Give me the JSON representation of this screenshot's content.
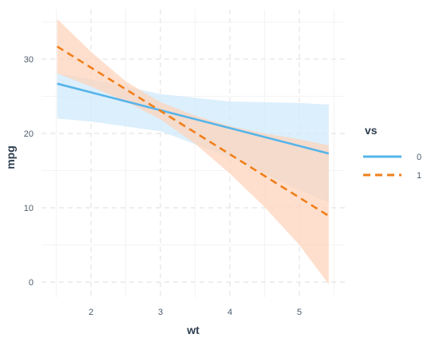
{
  "chart_data": {
    "type": "line",
    "xlabel": "wt",
    "ylabel": "mpg",
    "xlim": [
      1.513,
      5.424
    ],
    "ylim": [
      -1.5,
      36
    ],
    "xticks": [
      2,
      3,
      4,
      5
    ],
    "yticks": [
      0,
      10,
      20,
      30
    ],
    "grid": true,
    "legend": {
      "title": "vs",
      "position": "right"
    },
    "series": [
      {
        "name": "0",
        "color": "#56b4e9",
        "band_color": "#cfe9fb",
        "dash": "solid",
        "x": [
          1.513,
          5.424
        ],
        "fit": [
          26.7,
          17.3
        ],
        "lower": [
          22.0,
          10.7
        ],
        "upper": [
          28.1,
          23.9
        ],
        "band_x": [
          1.513,
          2.0,
          3.0,
          4.0,
          5.0,
          5.424
        ],
        "band_lower": [
          22.0,
          21.6,
          20.3,
          16.8,
          12.4,
          10.7
        ],
        "band_upper": [
          28.1,
          27.3,
          25.3,
          24.3,
          24.1,
          23.9
        ]
      },
      {
        "name": "1",
        "color": "#f07f1a",
        "band_color": "#fdd3ba",
        "dash": "dashed",
        "x": [
          1.513,
          5.424
        ],
        "fit": [
          31.7,
          8.9
        ],
        "lower": [
          28.1,
          -0.3
        ],
        "upper": [
          35.4,
          18.4
        ],
        "band_x": [
          1.513,
          2.0,
          2.5,
          3.0,
          3.5,
          4.0,
          4.5,
          5.0,
          5.424
        ],
        "band_lower": [
          28.1,
          26.3,
          24.3,
          21.9,
          18.6,
          14.6,
          10.1,
          5.0,
          -0.3
        ],
        "band_upper": [
          35.4,
          31.0,
          27.0,
          24.2,
          22.4,
          21.0,
          20.0,
          19.2,
          18.4
        ]
      }
    ]
  }
}
